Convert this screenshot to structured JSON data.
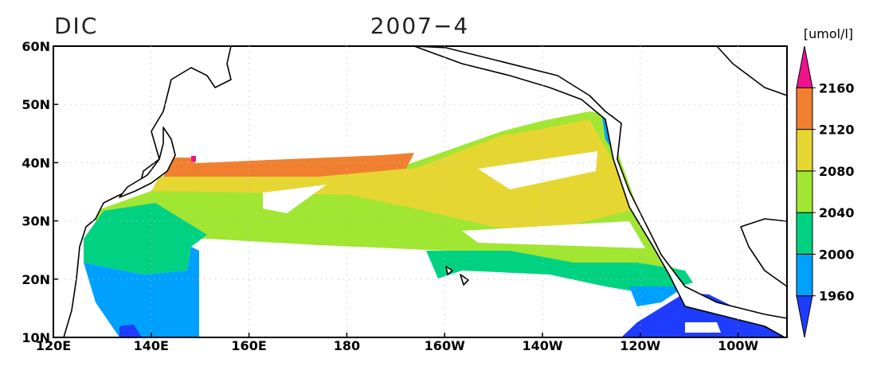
{
  "title": "DIC",
  "subtitle": "2007−4",
  "colorbar": {
    "unit": "[umol/l]",
    "levels": [
      1960,
      2000,
      2040,
      2080,
      2120,
      2160
    ],
    "colors": [
      "#1e3cff",
      "#00a0ff",
      "#00d282",
      "#a0e632",
      "#e6d632",
      "#f08030",
      "#f0148c"
    ]
  },
  "axes": {
    "xlim": [
      120,
      270
    ],
    "ylim": [
      10,
      60
    ],
    "xticks": [
      {
        "value": 120,
        "label": "120E"
      },
      {
        "value": 140,
        "label": "140E"
      },
      {
        "value": 160,
        "label": "160E"
      },
      180,
      {
        "value": 200,
        "label": "160W"
      },
      {
        "value": 220,
        "label": "140W"
      },
      {
        "value": 240,
        "label": "120W"
      },
      {
        "value": 260,
        "label": "100W"
      }
    ],
    "yticks": [
      {
        "value": 10,
        "label": "10N"
      },
      {
        "value": 20,
        "label": "20N"
      },
      {
        "value": 30,
        "label": "30N"
      },
      {
        "value": 40,
        "label": "40N"
      },
      {
        "value": 50,
        "label": "50N"
      },
      {
        "value": 60,
        "label": "60N"
      }
    ]
  }
}
